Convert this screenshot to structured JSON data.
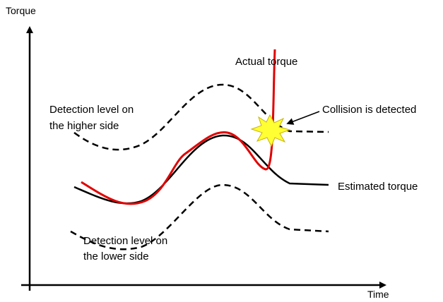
{
  "axes": {
    "y_label": "Torque",
    "x_label": "Time"
  },
  "labels": {
    "actual": "Actual torque",
    "higher_1": "Detection level on",
    "higher_2": "the higher side",
    "collision": "Collision is detected",
    "estimated": "Estimated torque",
    "lower_1": "Detection level on",
    "lower_2": "the lower side"
  }
}
